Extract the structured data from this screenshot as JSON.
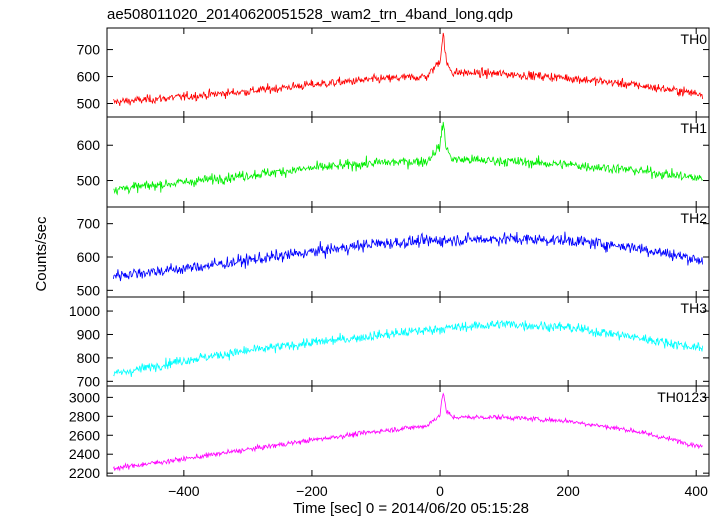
{
  "chart_data": {
    "type": "line",
    "title": "ae508011020_20140620051528_wam2_trn_4band_long.qdp",
    "xlabel": "Time [sec] 0 = 2014/06/20 05:15:28",
    "ylabel": "Counts/sec",
    "xlim": [
      -520,
      420
    ],
    "xticks": [
      -400,
      -200,
      0,
      200,
      400
    ],
    "x_sampling": {
      "start": -510,
      "end": 410,
      "step": 1
    },
    "panels": [
      {
        "name": "TH0",
        "color": "#ff0000",
        "ylim": [
          450,
          780
        ],
        "yticks": [
          500,
          600,
          700
        ],
        "profile": {
          "x": [
            -510,
            -400,
            -300,
            -200,
            -100,
            -20,
            0,
            5,
            10,
            20,
            100,
            200,
            300,
            410
          ],
          "y": [
            505,
            525,
            545,
            570,
            590,
            600,
            660,
            760,
            650,
            615,
            610,
            595,
            570,
            535
          ]
        },
        "noise_amplitude": 25
      },
      {
        "name": "TH1",
        "color": "#00ee00",
        "ylim": [
          425,
          680
        ],
        "yticks": [
          500,
          600
        ],
        "profile": {
          "x": [
            -510,
            -400,
            -300,
            -200,
            -100,
            -20,
            0,
            5,
            10,
            20,
            100,
            200,
            300,
            410
          ],
          "y": [
            475,
            495,
            515,
            535,
            550,
            555,
            600,
            665,
            590,
            560,
            555,
            545,
            530,
            505
          ]
        },
        "noise_amplitude": 22
      },
      {
        "name": "TH2",
        "color": "#0000ff",
        "ylim": [
          480,
          750
        ],
        "yticks": [
          500,
          600,
          700
        ],
        "profile": {
          "x": [
            -510,
            -400,
            -300,
            -200,
            -100,
            0,
            100,
            200,
            300,
            410
          ],
          "y": [
            545,
            565,
            590,
            615,
            640,
            650,
            655,
            650,
            630,
            590
          ]
        },
        "noise_amplitude": 28
      },
      {
        "name": "TH3",
        "color": "#00ffff",
        "ylim": [
          680,
          1060
        ],
        "yticks": [
          700,
          800,
          900,
          1000
        ],
        "profile": {
          "x": [
            -510,
            -400,
            -300,
            -200,
            -100,
            0,
            100,
            200,
            300,
            410
          ],
          "y": [
            730,
            790,
            830,
            865,
            895,
            925,
            945,
            930,
            890,
            840
          ]
        },
        "noise_amplitude": 32
      },
      {
        "name": "TH0123",
        "color": "#ff00ff",
        "ylim": [
          2170,
          3120
        ],
        "yticks": [
          2200,
          2400,
          2600,
          2800,
          3000
        ],
        "profile": {
          "x": [
            -510,
            -400,
            -300,
            -200,
            -100,
            -20,
            0,
            5,
            10,
            20,
            100,
            200,
            300,
            410
          ],
          "y": [
            2250,
            2350,
            2450,
            2550,
            2640,
            2700,
            2820,
            3060,
            2850,
            2790,
            2790,
            2750,
            2650,
            2480
          ]
        },
        "noise_amplitude": 40
      }
    ],
    "grid": false,
    "legend": "none"
  }
}
